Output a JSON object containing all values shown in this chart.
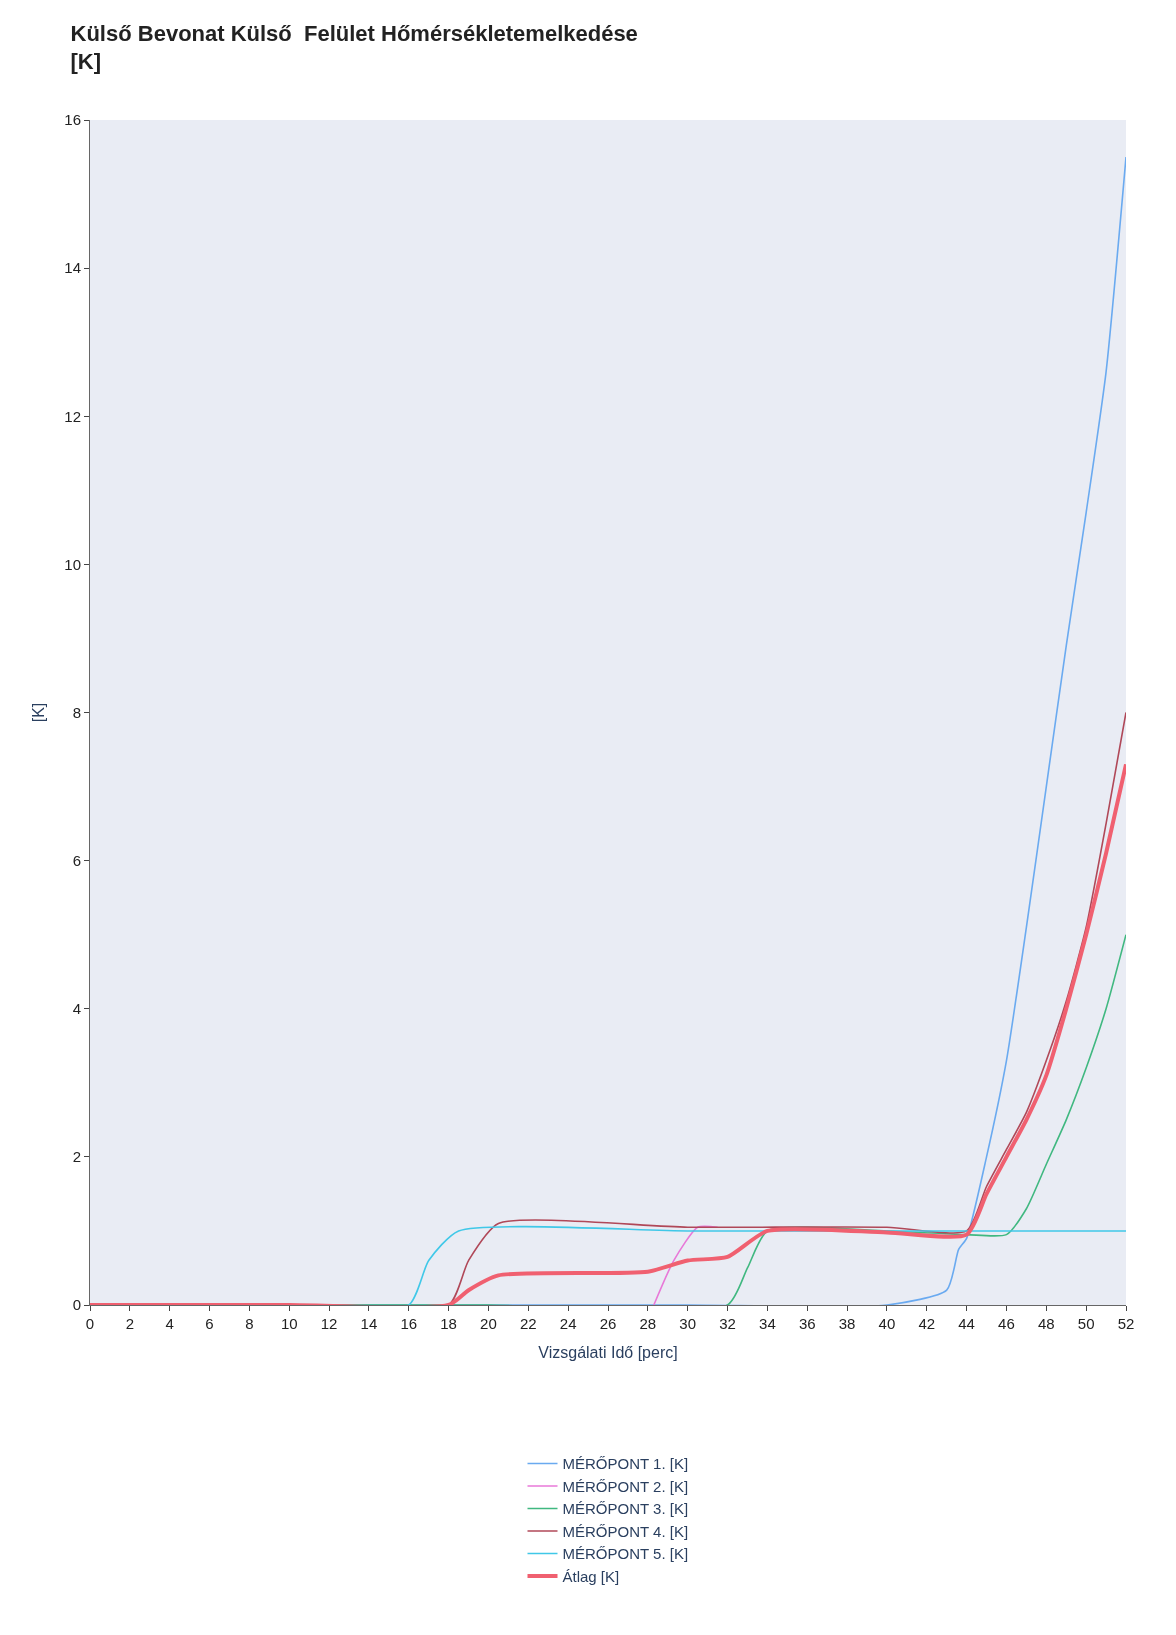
{
  "chart_data": {
    "type": "line",
    "title": "Külső Bevonat Külső  Felület Hőmérsékletemelkedése",
    "subtitle": "[K]",
    "xlabel": "Vizsgálati Idő [perc]",
    "ylabel": "[K]",
    "xlim": [
      0,
      52
    ],
    "xticks": [
      0,
      2,
      4,
      6,
      8,
      10,
      12,
      14,
      16,
      18,
      20,
      22,
      24,
      26,
      28,
      30,
      32,
      34,
      36,
      38,
      40,
      42,
      44,
      46,
      48,
      50,
      52
    ],
    "ylim": [
      0,
      16
    ],
    "yticks": [
      0,
      2,
      4,
      6,
      8,
      10,
      12,
      14,
      16
    ],
    "grid": false,
    "legend": "bottom",
    "marker": "none",
    "line_style": "solid",
    "series": [
      {
        "name": "MÉRŐPONT 1. [K]",
        "color": "#6aaaf0",
        "x": [
          0,
          10,
          20,
          30,
          40,
          43,
          43.6,
          44,
          45,
          46,
          47,
          48,
          49,
          50,
          51,
          52
        ],
        "values": [
          0,
          0,
          0,
          0,
          0,
          0.2,
          0.75,
          0.9,
          2.0,
          3.3,
          5.1,
          7.0,
          8.9,
          10.7,
          12.6,
          15.5
        ]
      },
      {
        "name": "MÉRŐPONT 2. [K]",
        "color": "#e878d8",
        "x": [
          28.3,
          29.3,
          30.5,
          31.5
        ],
        "values": [
          0,
          0.6,
          1.05,
          1.05
        ]
      },
      {
        "name": "MÉRŐPONT 3. [K]",
        "color": "#40b880",
        "x": [
          0,
          10,
          20,
          32,
          33,
          34,
          40,
          44,
          46,
          47,
          48,
          49,
          50,
          51,
          52
        ],
        "values": [
          0,
          0,
          0,
          0,
          0.5,
          1.0,
          1.0,
          0.95,
          0.95,
          1.3,
          1.9,
          2.5,
          3.2,
          4.0,
          5.0
        ]
      },
      {
        "name": "MÉRŐPONT 4. [K]",
        "color": "#b04858",
        "x": [
          0,
          10,
          18,
          19,
          20.5,
          30,
          40,
          44,
          45,
          46,
          47,
          48,
          49,
          50,
          51,
          52
        ],
        "values": [
          0,
          0,
          0,
          0.6,
          1.1,
          1.05,
          1.05,
          1.0,
          1.6,
          2.1,
          2.6,
          3.3,
          4.1,
          5.1,
          6.5,
          8.0
        ]
      },
      {
        "name": "MÉRŐPONT 5. [K]",
        "color": "#40c8e8",
        "x": [
          0,
          10,
          16,
          17,
          18.5,
          30,
          40,
          44,
          52
        ],
        "values": [
          0,
          0,
          0,
          0.6,
          1.0,
          1.0,
          1.0,
          1.0,
          1.0
        ]
      },
      {
        "name": "Átlag [K]",
        "color": "#f06070",
        "x": [
          0,
          10,
          18,
          19,
          20.5,
          28,
          30,
          32,
          34,
          40,
          44,
          45,
          46,
          47,
          48,
          49,
          50,
          51,
          52
        ],
        "values": [
          0,
          0,
          0,
          0.2,
          0.4,
          0.45,
          0.6,
          0.65,
          1.0,
          0.98,
          0.95,
          1.5,
          2.0,
          2.5,
          3.1,
          4.0,
          5.0,
          6.1,
          7.3
        ]
      }
    ]
  }
}
